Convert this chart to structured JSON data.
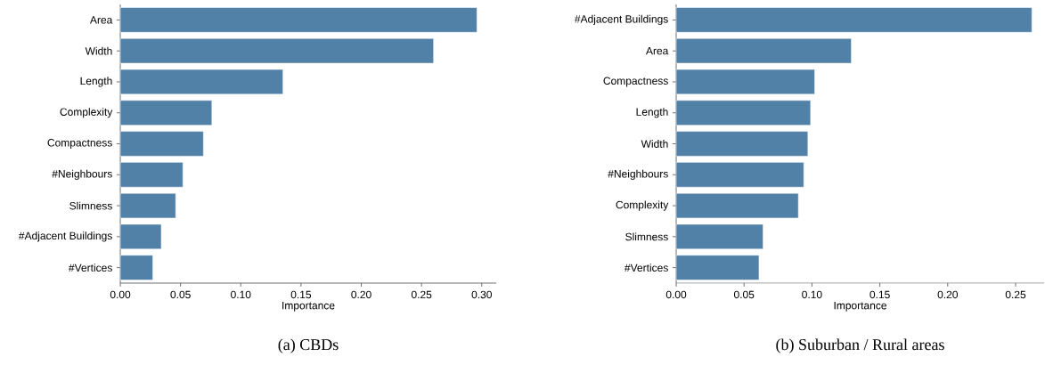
{
  "chart_data": [
    {
      "type": "bar",
      "orientation": "horizontal",
      "title": "(a) CBDs",
      "xlabel": "Importance",
      "color": "#5181a7",
      "categories": [
        "Area",
        "Width",
        "Length",
        "Complexity",
        "Compactness",
        "#Neighbours",
        "Slimness",
        "#Adjacent Buildings",
        "#Vertices"
      ],
      "values": [
        0.296,
        0.26,
        0.135,
        0.076,
        0.069,
        0.052,
        0.046,
        0.034,
        0.027
      ],
      "xlim": [
        0,
        0.312
      ],
      "xticks": [
        {
          "value": 0,
          "label": "0.00"
        },
        {
          "value": 0.05,
          "label": "0.05"
        },
        {
          "value": 0.1,
          "label": "0.10"
        },
        {
          "value": 0.15,
          "label": "0.15"
        },
        {
          "value": 0.2,
          "label": "0.20"
        },
        {
          "value": 0.25,
          "label": "0.25"
        },
        {
          "value": 0.3,
          "label": "0.30"
        }
      ]
    },
    {
      "type": "bar",
      "orientation": "horizontal",
      "title": "(b) Suburban / Rural areas",
      "xlabel": "Importance",
      "color": "#5181a7",
      "categories": [
        "#Adjacent Buildings",
        "Area",
        "Compactness",
        "Length",
        "Width",
        "#Neighbours",
        "Complexity",
        "Slimness",
        "#Vertices"
      ],
      "values": [
        0.262,
        0.129,
        0.102,
        0.099,
        0.097,
        0.094,
        0.09,
        0.064,
        0.061
      ],
      "xlim": [
        0,
        0.271
      ],
      "xticks": [
        {
          "value": 0,
          "label": "0.00"
        },
        {
          "value": 0.05,
          "label": "0.05"
        },
        {
          "value": 0.1,
          "label": "0.10"
        },
        {
          "value": 0.15,
          "label": "0.15"
        },
        {
          "value": 0.2,
          "label": "0.20"
        },
        {
          "value": 0.25,
          "label": "0.25"
        }
      ]
    }
  ]
}
